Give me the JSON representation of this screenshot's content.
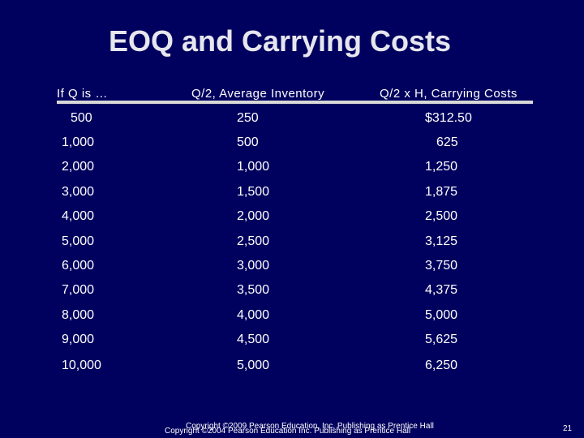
{
  "header": {
    "title": "EOQ and Carrying Costs"
  },
  "table": {
    "columns": [
      "If Q is …",
      "Q/2, Average Inventory",
      "Q/2 x H, Carrying Costs"
    ],
    "rows": [
      [
        "500",
        "250",
        "$312.50"
      ],
      [
        "1,000",
        "500",
        "625"
      ],
      [
        "2,000",
        "1,000",
        "1,250"
      ],
      [
        "3,000",
        "1,500",
        "1,875"
      ],
      [
        "4,000",
        "2,000",
        "2,500"
      ],
      [
        "5,000",
        "2,500",
        "3,125"
      ],
      [
        "6,000",
        "3,000",
        "3,750"
      ],
      [
        "7,000",
        "3,500",
        "4,375"
      ],
      [
        "8,000",
        "4,000",
        "5,000"
      ],
      [
        "9,000",
        "4,500",
        "5,625"
      ],
      [
        "10,000",
        "5,000",
        "6,250"
      ]
    ]
  },
  "footer": {
    "copyright_2009": "Copyright ©2009 Pearson Education, Inc. Publishing as Prentice Hall",
    "copyright_2004": "Copyright ©2004 Pearson Education Inc. Publishing as Prentice Hall",
    "page_number": "21"
  }
}
